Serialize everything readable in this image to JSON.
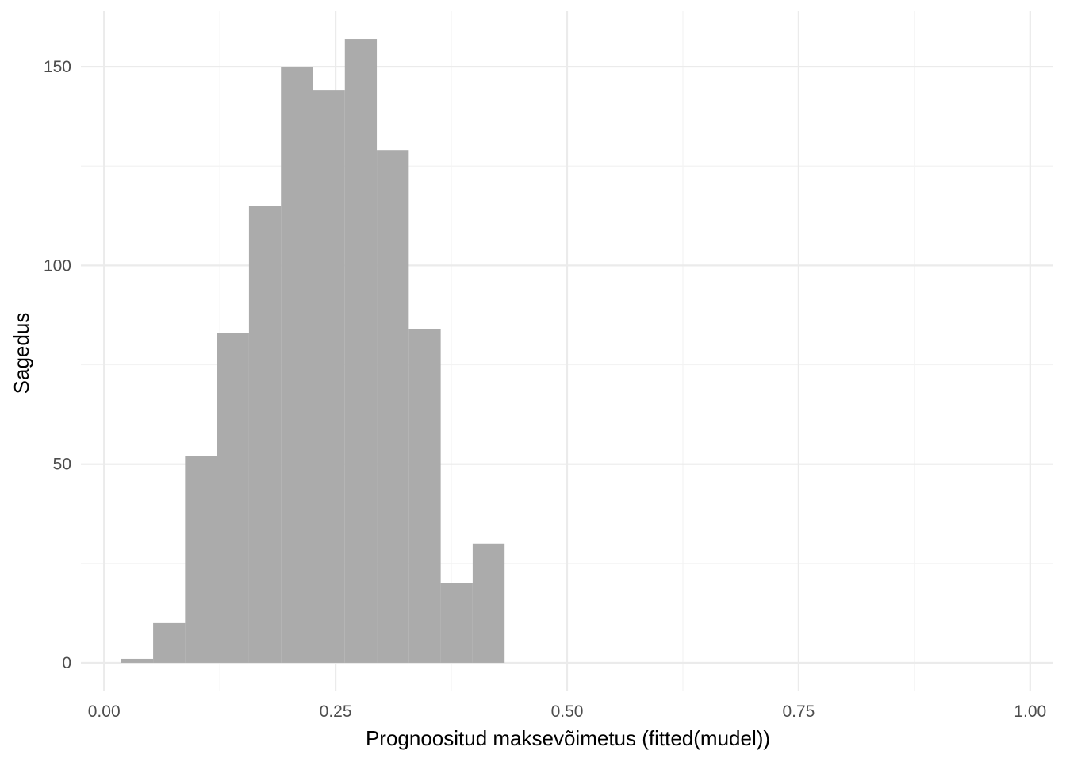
{
  "chart_data": {
    "type": "bar",
    "subtype": "histogram",
    "xlabel": "Prognoositud maksevõimetus (fitted(mudel))",
    "ylabel": "Sagedus",
    "xlim": [
      -0.025,
      1.025
    ],
    "ylim": [
      -7,
      164
    ],
    "x_ticks": [
      0.0,
      0.25,
      0.5,
      0.75,
      1.0
    ],
    "x_tick_labels": [
      "0.00",
      "0.25",
      "0.50",
      "0.75",
      "1.00"
    ],
    "y_ticks": [
      0,
      50,
      100,
      150
    ],
    "y_tick_labels": [
      "0",
      "50",
      "100",
      "150"
    ],
    "grid": true,
    "bins": [
      {
        "x0": 0.0185,
        "x1": 0.053,
        "count": 1
      },
      {
        "x0": 0.053,
        "x1": 0.0875,
        "count": 10
      },
      {
        "x0": 0.0875,
        "x1": 0.122,
        "count": 52
      },
      {
        "x0": 0.122,
        "x1": 0.1565,
        "count": 83
      },
      {
        "x0": 0.1565,
        "x1": 0.191,
        "count": 115
      },
      {
        "x0": 0.191,
        "x1": 0.2255,
        "count": 150
      },
      {
        "x0": 0.2255,
        "x1": 0.26,
        "count": 144
      },
      {
        "x0": 0.26,
        "x1": 0.2945,
        "count": 157
      },
      {
        "x0": 0.2945,
        "x1": 0.329,
        "count": 129
      },
      {
        "x0": 0.329,
        "x1": 0.3635,
        "count": 84
      },
      {
        "x0": 0.3635,
        "x1": 0.398,
        "count": 20
      },
      {
        "x0": 0.398,
        "x1": 0.4325,
        "count": 30
      }
    ],
    "colors": {
      "bar_fill": "#a9a9a9",
      "grid_major": "#ebebeb",
      "grid_minor": "#f3f3f3"
    }
  }
}
